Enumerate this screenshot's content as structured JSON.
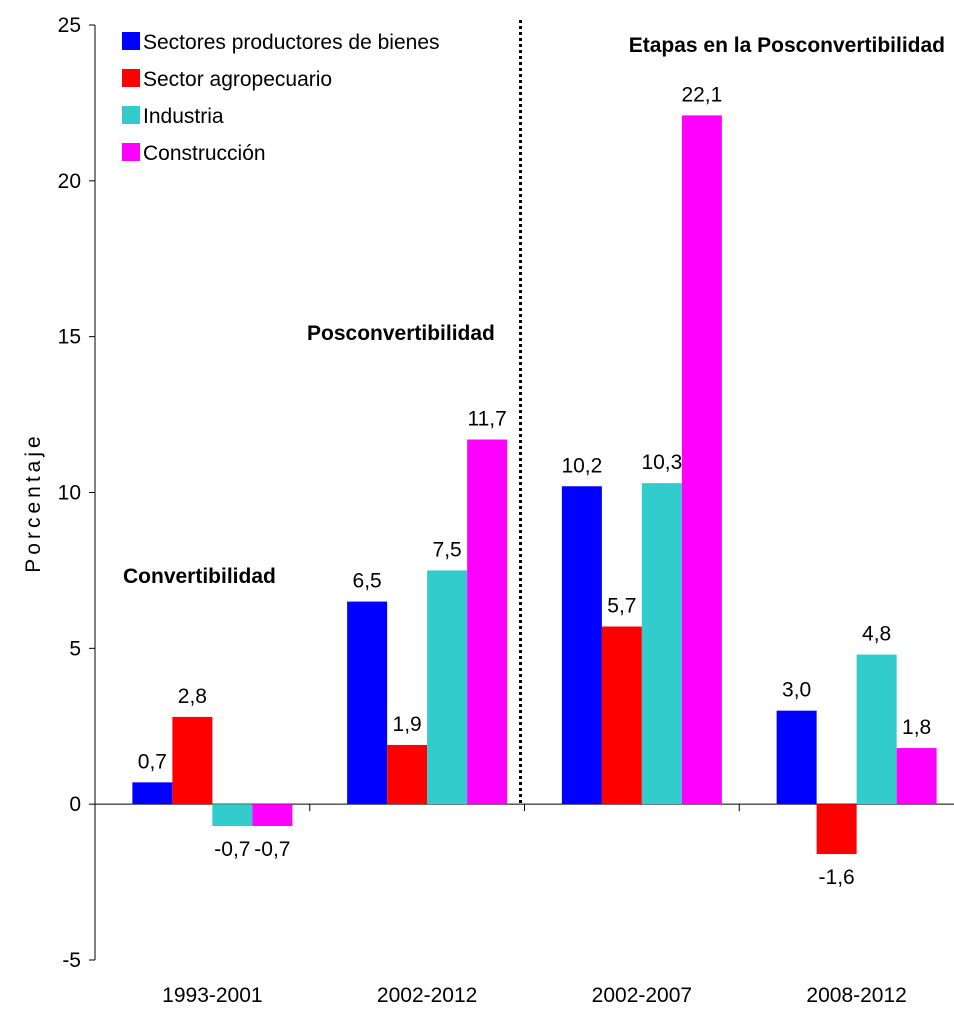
{
  "chart_data": {
    "type": "bar",
    "title": "",
    "xlabel": "",
    "ylabel": "Porcentaje",
    "ylim": [
      -5,
      25
    ],
    "yticks": [
      -5,
      0,
      5,
      10,
      15,
      20,
      25
    ],
    "grid": false,
    "legend_position": "top-left",
    "categories": [
      "1993-2001",
      "2002-2012",
      "2002-2007",
      "2008-2012"
    ],
    "series": [
      {
        "name": "Sectores productores de bienes",
        "color": "#0000ff",
        "values": [
          0.7,
          6.5,
          10.2,
          3.0
        ],
        "labels": [
          "0,7",
          "6,5",
          "10,2",
          "3,0"
        ]
      },
      {
        "name": "Sector agropecuario",
        "color": "#ff0000",
        "values": [
          2.8,
          1.9,
          5.7,
          -1.6
        ],
        "labels": [
          "2,8",
          "1,9",
          "5,7",
          "-1,6"
        ]
      },
      {
        "name": "Industria",
        "color": "#33cccc",
        "values": [
          -0.7,
          7.5,
          10.3,
          4.8
        ],
        "labels": [
          "-0,7",
          "7,5",
          "10,3",
          "4,8"
        ]
      },
      {
        "name": "Construcción",
        "color": "#ff00ff",
        "values": [
          -0.7,
          11.7,
          22.1,
          1.8
        ],
        "labels": [
          "-0,7",
          "11,7",
          "22,1",
          "1,8"
        ]
      }
    ],
    "annotations": [
      {
        "text": "Convertibilidad",
        "near_category": "1993-2001"
      },
      {
        "text": "Posconvertibilidad",
        "near_category": "2002-2012"
      },
      {
        "text": "Etapas en la Posconvertibilidad",
        "near_category": "2008-2012"
      }
    ],
    "divider": {
      "style": "dotted",
      "between_categories": [
        "2002-2012",
        "2002-2007"
      ]
    }
  }
}
